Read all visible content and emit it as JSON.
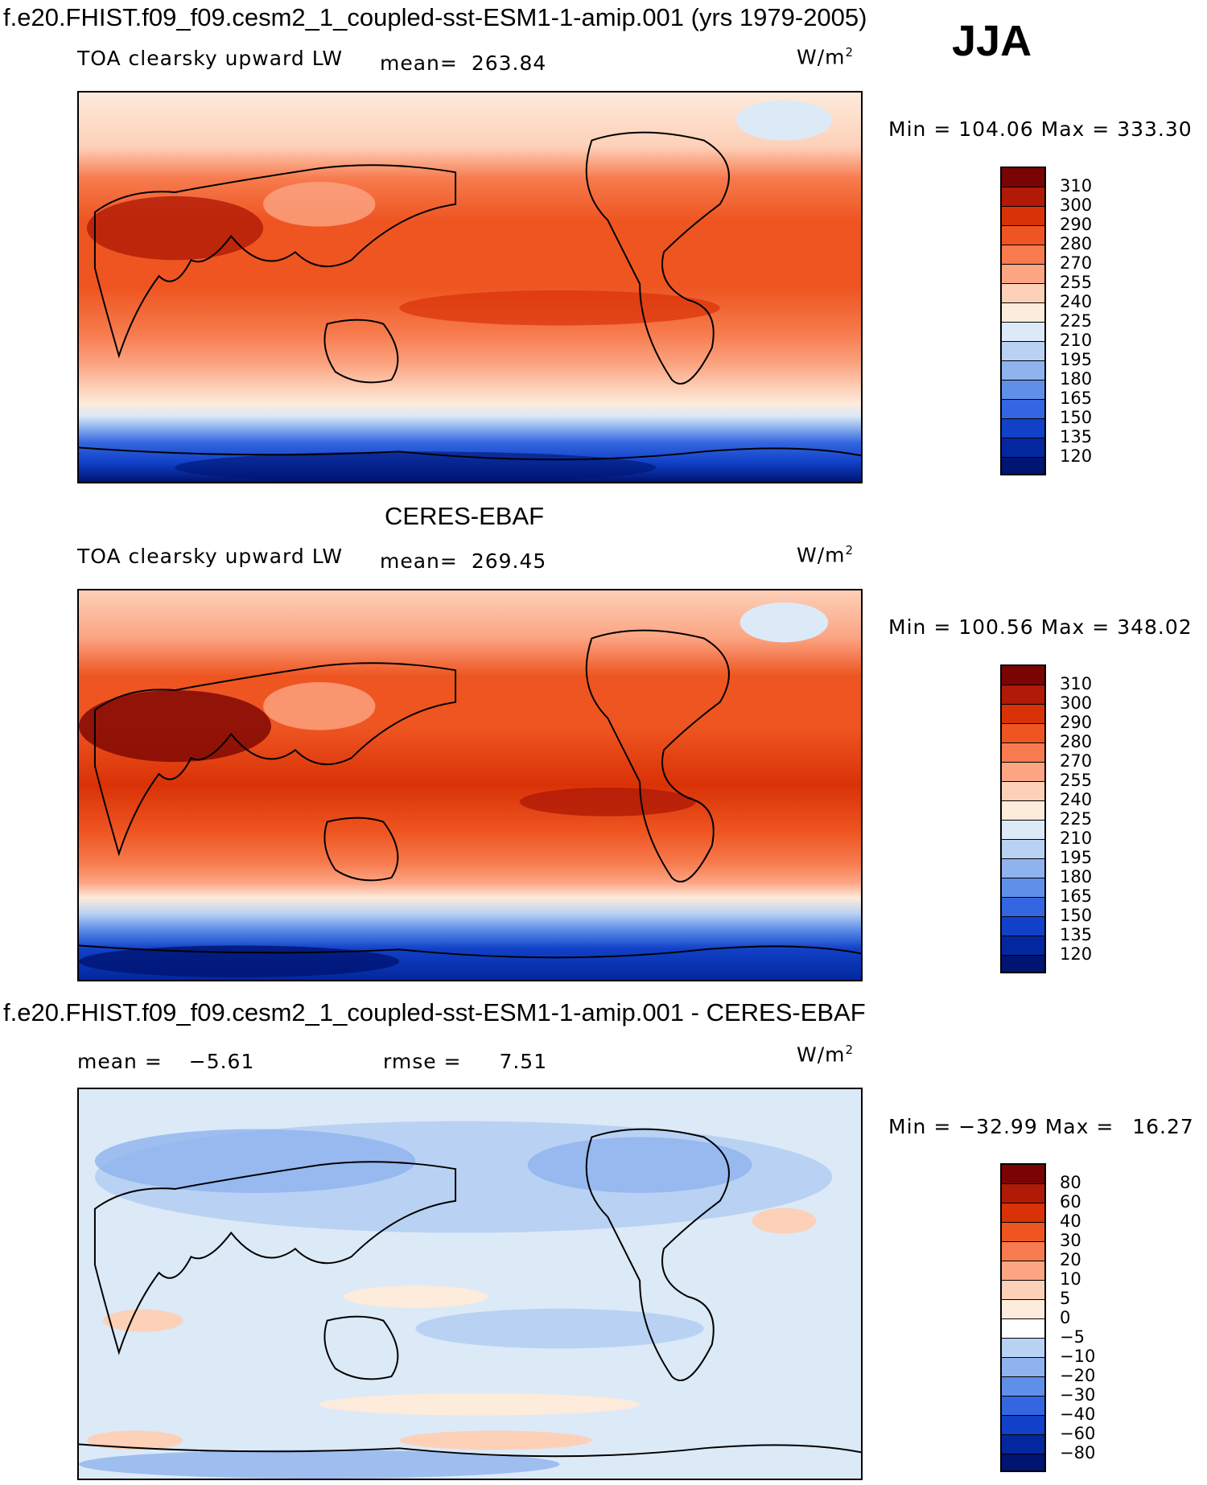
{
  "header": {
    "title": "f.e20.FHIST.f09_f09.cesm2_1_coupled-sst-ESM1-1-amip.001 (yrs 1979-2005)",
    "season": "JJA"
  },
  "panels": [
    {
      "title": "",
      "variable": "TOA clearsky upward LW",
      "mean_label": "mean=",
      "mean": "263.84",
      "units_base": "W/m",
      "units_exp": "2",
      "min_label": "Min",
      "min": "104.06",
      "max_label": "Max",
      "max": "333.30",
      "scale": [
        "310",
        "300",
        "290",
        "280",
        "270",
        "255",
        "240",
        "225",
        "210",
        "195",
        "180",
        "165",
        "150",
        "135",
        "120"
      ]
    },
    {
      "title": "CERES-EBAF",
      "variable": "TOA clearsky upward LW",
      "mean_label": "mean=",
      "mean": "269.45",
      "units_base": "W/m",
      "units_exp": "2",
      "min_label": "Min",
      "min": "100.56",
      "max_label": "Max",
      "max": "348.02",
      "scale": [
        "310",
        "300",
        "290",
        "280",
        "270",
        "255",
        "240",
        "225",
        "210",
        "195",
        "180",
        "165",
        "150",
        "135",
        "120"
      ]
    },
    {
      "title": "f.e20.FHIST.f09_f09.cesm2_1_coupled-sst-ESM1-1-amip.001 - CERES-EBAF",
      "mean_label": "mean =",
      "mean": "−5.61",
      "rmse_label": "rmse =",
      "rmse": "7.51",
      "units_base": "W/m",
      "units_exp": "2",
      "min_label": "Min",
      "min": "−32.99",
      "max_label": "Max",
      "max": "16.27",
      "scale": [
        "80",
        "60",
        "40",
        "30",
        "20",
        "10",
        "5",
        "0",
        "−5",
        "−10",
        "−20",
        "−30",
        "−40",
        "−60",
        "−80"
      ]
    }
  ],
  "colors": {
    "abs_palette": [
      "#7a0403",
      "#b01a06",
      "#d93207",
      "#ee5521",
      "#f77b4e",
      "#fba583",
      "#fdd0b8",
      "#fdebdc",
      "#dce9f7",
      "#b9d2f3",
      "#8fb3ee",
      "#5f8fe8",
      "#3366e0",
      "#1141c8",
      "#03279e",
      "#001472"
    ],
    "diff_palette": [
      "#7a0403",
      "#b01a06",
      "#d93207",
      "#ee5521",
      "#f77b4e",
      "#fba583",
      "#fdd0b8",
      "#fdebdc",
      "#ffffff",
      "#dce9f7",
      "#b9d2f3",
      "#8fb3ee",
      "#5f8fe8",
      "#3366e0",
      "#1141c8",
      "#03279e",
      "#001472"
    ]
  }
}
